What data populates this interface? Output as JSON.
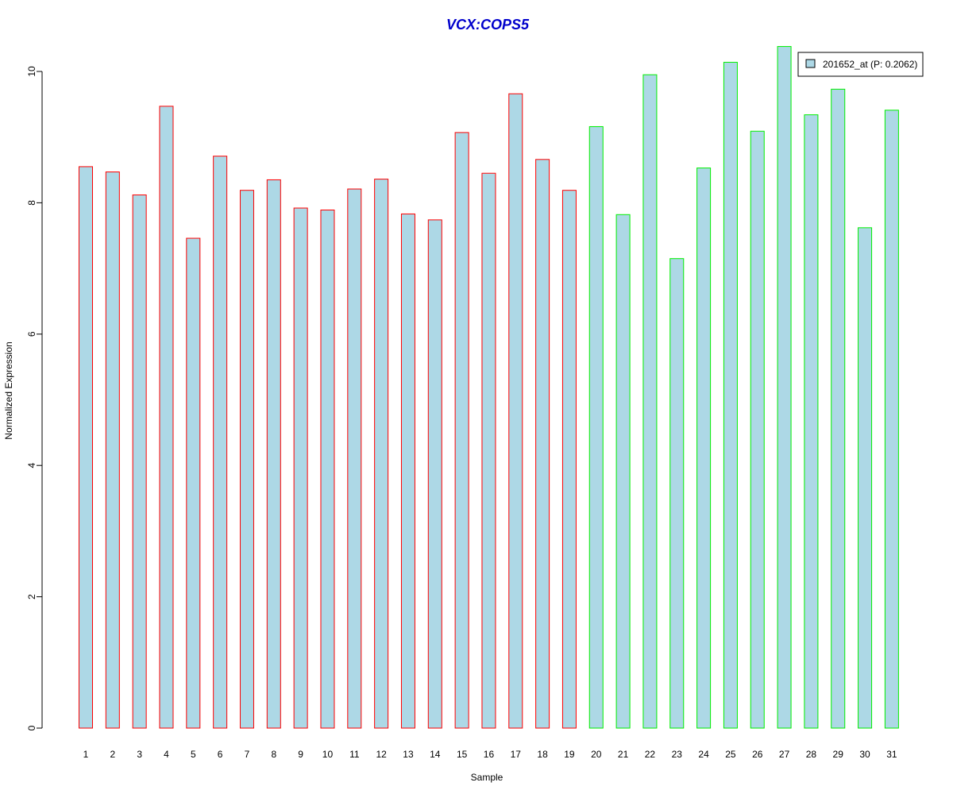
{
  "chart_data": {
    "type": "bar",
    "title": "VCX:COPS5",
    "xlabel": "Sample",
    "ylabel": "Normalized Expression",
    "categories": [
      "1",
      "2",
      "3",
      "4",
      "5",
      "6",
      "7",
      "8",
      "9",
      "10",
      "11",
      "12",
      "13",
      "14",
      "15",
      "16",
      "17",
      "18",
      "19",
      "20",
      "21",
      "22",
      "23",
      "24",
      "25",
      "26",
      "27",
      "28",
      "29",
      "30",
      "31"
    ],
    "series": [
      {
        "name": "201652_at (P: 0.2062)",
        "values": [
          8.55,
          8.47,
          8.12,
          9.47,
          7.46,
          8.71,
          8.19,
          8.35,
          7.92,
          7.89,
          8.21,
          8.36,
          7.83,
          7.74,
          9.07,
          8.45,
          9.66,
          8.66,
          8.19,
          9.16,
          7.82,
          9.95,
          7.15,
          8.53,
          10.14,
          9.09,
          10.38,
          9.34,
          9.73,
          7.62,
          9.41
        ]
      }
    ],
    "groups": [
      {
        "samples": [
          1,
          19
        ],
        "border_color": "#ff0000"
      },
      {
        "samples": [
          20,
          31
        ],
        "border_color": "#00ee00"
      }
    ],
    "bar_fill": "#add8e6",
    "title_color": "#0000cc",
    "y_ticks": [
      0,
      2,
      4,
      6,
      8,
      10
    ],
    "ylim": [
      0,
      10.4
    ],
    "legend_placement": "top-right",
    "grid": false
  }
}
